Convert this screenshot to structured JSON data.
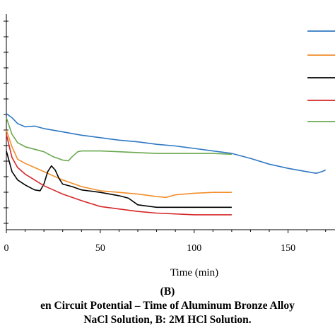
{
  "chart_data": {
    "type": "line",
    "xlabel": "Time (min)",
    "ylabel": "",
    "title": "",
    "xlim": [
      0,
      175
    ],
    "x_ticks": [
      0,
      50,
      100,
      150
    ],
    "legend_position": "right",
    "grid": false,
    "series": [
      {
        "color": "#2f78c4",
        "x": [
          0,
          3,
          6,
          10,
          15,
          20,
          30,
          40,
          50,
          60,
          70,
          80,
          90,
          100,
          110,
          120,
          130,
          140,
          150,
          160,
          165,
          168,
          170
        ],
        "values": [
          -0.34,
          -0.345,
          -0.352,
          -0.356,
          -0.355,
          -0.358,
          -0.362,
          -0.366,
          -0.369,
          -0.372,
          -0.374,
          -0.377,
          -0.379,
          -0.382,
          -0.385,
          -0.388,
          -0.394,
          -0.401,
          -0.406,
          -0.41,
          -0.412,
          -0.41,
          -0.408
        ]
      },
      {
        "color": "#f28e2b",
        "x": [
          0,
          3,
          6,
          10,
          15,
          20,
          25,
          30,
          40,
          50,
          60,
          70,
          80,
          85,
          90,
          100,
          110,
          120
        ],
        "values": [
          -0.36,
          -0.38,
          -0.395,
          -0.4,
          -0.405,
          -0.41,
          -0.415,
          -0.42,
          -0.428,
          -0.433,
          -0.435,
          -0.437,
          -0.44,
          -0.441,
          -0.438,
          -0.436,
          -0.435,
          -0.435
        ]
      },
      {
        "color": "#000000",
        "x": [
          0,
          3,
          6,
          10,
          15,
          18,
          20,
          22,
          24,
          26,
          28,
          30,
          35,
          40,
          50,
          60,
          65,
          70,
          80,
          90,
          100,
          110,
          120
        ],
        "values": [
          -0.385,
          -0.41,
          -0.42,
          -0.426,
          -0.432,
          -0.433,
          -0.425,
          -0.41,
          -0.403,
          -0.408,
          -0.418,
          -0.425,
          -0.428,
          -0.432,
          -0.435,
          -0.439,
          -0.442,
          -0.45,
          -0.453,
          -0.453,
          -0.453,
          -0.453,
          -0.453
        ]
      },
      {
        "color": "#d62728",
        "x": [
          0,
          3,
          6,
          10,
          15,
          20,
          25,
          30,
          40,
          50,
          60,
          70,
          80,
          90,
          100,
          110,
          120
        ],
        "values": [
          -0.365,
          -0.393,
          -0.405,
          -0.413,
          -0.42,
          -0.427,
          -0.432,
          -0.437,
          -0.445,
          -0.452,
          -0.455,
          -0.458,
          -0.46,
          -0.461,
          -0.462,
          -0.462,
          -0.462
        ]
      },
      {
        "color": "#6aa84f",
        "x": [
          0,
          3,
          6,
          10,
          15,
          20,
          25,
          30,
          33,
          35,
          38,
          40,
          50,
          60,
          70,
          80,
          90,
          100,
          110,
          120
        ],
        "values": [
          -0.345,
          -0.365,
          -0.375,
          -0.38,
          -0.383,
          -0.386,
          -0.392,
          -0.396,
          -0.397,
          -0.392,
          -0.386,
          -0.385,
          -0.385,
          -0.386,
          -0.387,
          -0.388,
          -0.388,
          -0.388,
          -0.388,
          -0.389
        ]
      }
    ]
  },
  "caption": {
    "panel_label": "(B)",
    "line1": "en Circuit Potential – Time of Aluminum Bronze Alloy",
    "line2": "NaCl Solution, B: 2M HCl Solution."
  }
}
